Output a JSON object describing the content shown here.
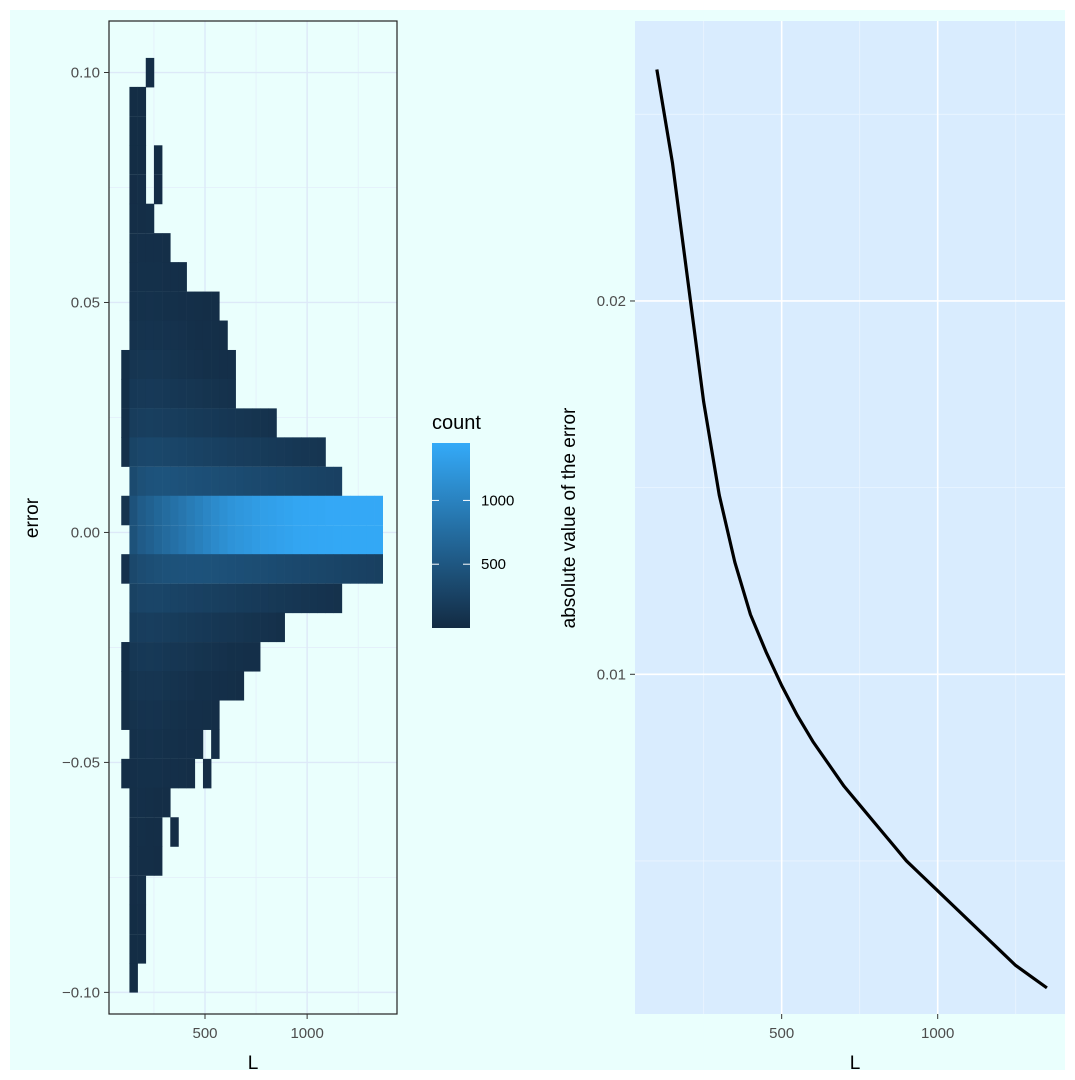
{
  "chart_data": [
    {
      "type": "heatmap",
      "xlabel": "L",
      "ylabel": "error",
      "x_ticks": [
        500,
        1000
      ],
      "y_ticks": [
        0.1,
        0.05,
        0.0,
        -0.05,
        -0.1
      ],
      "y_tick_labels": [
        "0.10",
        "0.05",
        "0.00",
        "−0.05",
        "−0.10"
      ],
      "x_tick_labels": [
        "500",
        "1000"
      ],
      "xlim": [
        30,
        1440
      ],
      "ylim": [
        -0.1047,
        0.1112
      ],
      "bin_width_x": 40,
      "bin_height_y": 0.00635,
      "grid": true,
      "fill_low": "#132b43",
      "fill_high": "#34aaf8",
      "legend": {
        "title": "count",
        "ticks": [
          500,
          1000
        ],
        "tick_labels": [
          "500",
          "1000"
        ],
        "range": [
          0,
          1450
        ],
        "placement": "right"
      },
      "bins_description": "each row: y center of bin, x start of bin, then counts per consecutive 40-wide x bin",
      "bins": [
        {
          "y": 0.1,
          "x0": 210,
          "counts": [
            30
          ]
        },
        {
          "y": 0.0937,
          "x0": 130,
          "counts": [
            20,
            20
          ]
        },
        {
          "y": 0.0873,
          "x0": 130,
          "counts": [
            20,
            20
          ]
        },
        {
          "y": 0.081,
          "x0": 130,
          "counts": [
            20,
            20,
            0,
            20
          ]
        },
        {
          "y": 0.0746,
          "x0": 130,
          "counts": [
            25,
            30,
            0,
            25
          ]
        },
        {
          "y": 0.0683,
          "x0": 130,
          "counts": [
            30,
            35,
            40
          ]
        },
        {
          "y": 0.0619,
          "x0": 130,
          "counts": [
            40,
            45,
            50,
            45,
            40
          ]
        },
        {
          "y": 0.0556,
          "x0": 130,
          "counts": [
            50,
            55,
            60,
            55,
            50,
            45,
            40
          ]
        },
        {
          "y": 0.0492,
          "x0": 130,
          "counts": [
            60,
            65,
            70,
            65,
            60,
            55,
            50,
            45,
            40,
            35,
            30
          ]
        },
        {
          "y": 0.0429,
          "x0": 130,
          "counts": [
            80,
            90,
            95,
            90,
            85,
            80,
            70,
            60,
            50,
            45,
            40,
            35
          ]
        },
        {
          "y": 0.0365,
          "x0": 90,
          "counts": [
            40,
            110,
            120,
            125,
            120,
            110,
            100,
            90,
            80,
            70,
            60,
            55,
            50,
            45
          ]
        },
        {
          "y": 0.0302,
          "x0": 90,
          "counts": [
            40,
            150,
            160,
            165,
            160,
            150,
            140,
            130,
            120,
            110,
            100,
            90,
            80,
            70
          ]
        },
        {
          "y": 0.0238,
          "x0": 90,
          "counts": [
            50,
            200,
            220,
            225,
            220,
            210,
            200,
            190,
            180,
            170,
            160,
            150,
            140,
            130,
            120,
            110,
            100,
            90,
            80
          ]
        },
        {
          "y": 0.0175,
          "x0": 90,
          "counts": [
            60,
            280,
            310,
            320,
            315,
            305,
            295,
            285,
            275,
            265,
            250,
            240,
            230,
            220,
            210,
            200,
            190,
            180,
            170,
            160,
            150,
            140,
            130,
            120,
            110
          ]
        },
        {
          "y": 0.0111,
          "x0": 130,
          "counts": [
            350,
            420,
            450,
            460,
            455,
            445,
            435,
            425,
            415,
            405,
            395,
            385,
            375,
            365,
            355,
            345,
            335,
            325,
            315,
            305,
            295,
            285,
            275,
            265,
            255,
            245
          ]
        },
        {
          "y": 0.0048,
          "x0": 90,
          "counts": [
            100,
            450,
            560,
            620,
            680,
            740,
            800,
            860,
            920,
            980,
            1040,
            1100,
            1150,
            1200,
            1230,
            1260,
            1290,
            1320,
            1340,
            1360,
            1380,
            1400,
            1410,
            1420,
            1420,
            1430,
            1430,
            1430,
            1430,
            1430,
            1430,
            1430
          ]
        },
        {
          "y": -0.0016,
          "x0": 130,
          "counts": [
            440,
            550,
            610,
            670,
            730,
            790,
            850,
            910,
            970,
            1030,
            1090,
            1140,
            1190,
            1220,
            1250,
            1280,
            1310,
            1330,
            1350,
            1370,
            1390,
            1400,
            1410,
            1415,
            1420,
            1425,
            1425,
            1425,
            1425,
            1425,
            1425
          ]
        },
        {
          "y": -0.0079,
          "x0": 90,
          "counts": [
            70,
            330,
            380,
            400,
            420,
            430,
            440,
            445,
            450,
            445,
            440,
            435,
            425,
            415,
            405,
            395,
            385,
            375,
            365,
            355,
            345,
            335,
            325,
            315,
            305,
            295,
            285,
            275,
            265,
            255,
            245,
            235
          ]
        },
        {
          "y": -0.0143,
          "x0": 130,
          "counts": [
            260,
            290,
            300,
            295,
            285,
            275,
            265,
            255,
            245,
            235,
            225,
            215,
            205,
            195,
            185,
            175,
            165,
            155,
            145,
            135,
            125,
            115,
            105,
            95,
            85,
            75
          ]
        },
        {
          "y": -0.0206,
          "x0": 130,
          "counts": [
            190,
            210,
            215,
            210,
            200,
            190,
            180,
            170,
            160,
            150,
            140,
            130,
            120,
            110,
            100,
            90,
            80,
            70,
            60
          ]
        },
        {
          "y": -0.027,
          "x0": 90,
          "counts": [
            45,
            140,
            150,
            155,
            150,
            140,
            130,
            120,
            110,
            100,
            90,
            80,
            70,
            60,
            55,
            50,
            45
          ]
        },
        {
          "y": -0.0333,
          "x0": 90,
          "counts": [
            40,
            100,
            110,
            115,
            110,
            100,
            90,
            80,
            70,
            60,
            55,
            50,
            45,
            40,
            35
          ]
        },
        {
          "y": -0.0397,
          "x0": 90,
          "counts": [
            35,
            75,
            85,
            90,
            85,
            75,
            65,
            55,
            50,
            45,
            40,
            35
          ]
        },
        {
          "y": -0.046,
          "x0": 130,
          "counts": [
            60,
            65,
            70,
            65,
            60,
            55,
            50,
            45,
            40,
            0,
            30
          ]
        },
        {
          "y": -0.0524,
          "x0": 90,
          "counts": [
            35,
            50,
            55,
            60,
            55,
            50,
            45,
            40,
            35,
            0,
            25
          ]
        },
        {
          "y": -0.0587,
          "x0": 130,
          "counts": [
            40,
            45,
            40,
            35,
            30
          ]
        },
        {
          "y": -0.0651,
          "x0": 130,
          "counts": [
            35,
            40,
            35,
            30,
            0,
            25
          ]
        },
        {
          "y": -0.0714,
          "x0": 130,
          "counts": [
            30,
            35,
            30,
            25
          ]
        },
        {
          "y": -0.0778,
          "x0": 130,
          "counts": [
            25,
            30
          ]
        },
        {
          "y": -0.0841,
          "x0": 130,
          "counts": [
            20,
            25
          ]
        },
        {
          "y": -0.0905,
          "x0": 130,
          "counts": [
            20,
            20
          ]
        },
        {
          "y": -0.0968,
          "x0": 130,
          "counts": [
            20
          ]
        }
      ]
    },
    {
      "type": "line",
      "xlabel": "L",
      "ylabel": "absolute value of the error",
      "x_ticks": [
        500,
        1000
      ],
      "x_tick_labels": [
        "500",
        "1000"
      ],
      "y_ticks": [
        0.01,
        0.02
      ],
      "y_tick_labels": [
        "0.01",
        "0.02"
      ],
      "xlim": [
        30,
        1440
      ],
      "ylim": [
        0.0009,
        0.0275
      ],
      "grid": true,
      "series": [
        {
          "color": "#000000",
          "x": [
            100,
            150,
            200,
            250,
            300,
            350,
            400,
            450,
            500,
            550,
            600,
            650,
            700,
            750,
            800,
            850,
            900,
            950,
            1000,
            1050,
            1100,
            1150,
            1200,
            1250,
            1300,
            1350
          ],
          "y": [
            0.0262,
            0.0237,
            0.0205,
            0.0173,
            0.0148,
            0.013,
            0.0116,
            0.0106,
            0.0097,
            0.0089,
            0.0082,
            0.0076,
            0.007,
            0.0065,
            0.006,
            0.0055,
            0.005,
            0.0046,
            0.0042,
            0.0038,
            0.0034,
            0.003,
            0.0026,
            0.0022,
            0.0019,
            0.0016
          ]
        }
      ]
    }
  ]
}
